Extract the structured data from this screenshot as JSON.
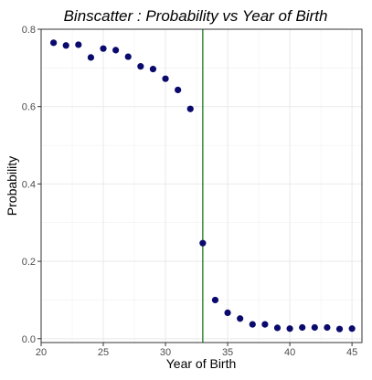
{
  "chart_data": {
    "type": "scatter",
    "title": "Binscatter : Probability vs Year of Birth",
    "xlabel": "Year of Birth",
    "ylabel": "Probability",
    "xlim": [
      20,
      45.8
    ],
    "ylim": [
      -0.01,
      0.8
    ],
    "x_ticks": [
      20,
      25,
      30,
      35,
      40,
      45
    ],
    "y_ticks": [
      0.0,
      0.2,
      0.4,
      0.6,
      0.8
    ],
    "x_tick_labels": [
      "20",
      "25",
      "30",
      "35",
      "40",
      "45"
    ],
    "y_tick_labels": [
      "0.0",
      "0.2",
      "0.4",
      "0.6",
      "0.8"
    ],
    "grid": true,
    "point_color": "#0a0a6e",
    "cutoff_line": {
      "x": 33,
      "color": "#1a7a1a"
    },
    "series": [
      {
        "x": [
          21,
          22,
          23,
          24,
          25,
          26,
          27,
          28,
          29,
          30,
          31,
          32,
          33,
          34,
          35,
          36,
          37,
          38,
          39,
          40,
          41,
          42,
          43,
          44,
          45
        ],
        "y": [
          0.765,
          0.758,
          0.76,
          0.727,
          0.75,
          0.746,
          0.729,
          0.704,
          0.697,
          0.672,
          0.643,
          0.594,
          0.247,
          0.1,
          0.067,
          0.052,
          0.037,
          0.037,
          0.028,
          0.026,
          0.029,
          0.029,
          0.029,
          0.025,
          0.026
        ]
      }
    ]
  }
}
